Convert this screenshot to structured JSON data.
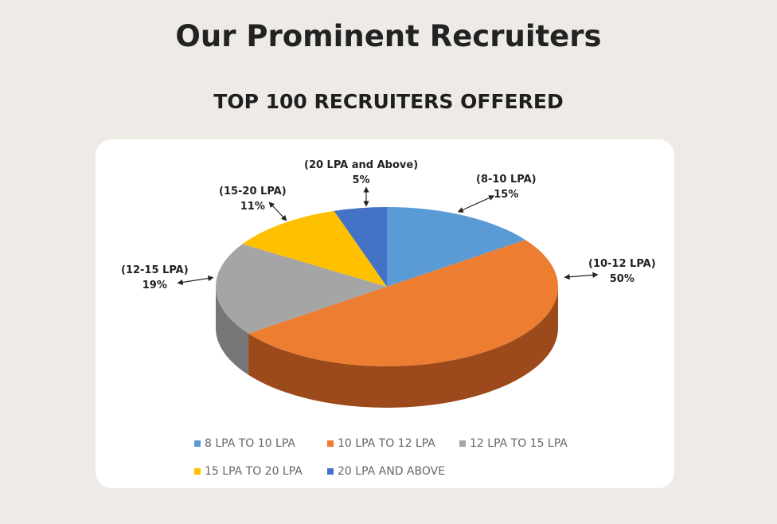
{
  "header": {
    "title": "Our Prominent Recruiters"
  },
  "chart_data": {
    "type": "pie",
    "title": "TOP 100 RECRUITERS OFFERED",
    "three_d": true,
    "legend_position": "bottom",
    "slices": [
      {
        "legend": "8 LPA TO 10 LPA",
        "label": "(8-10 LPA)",
        "value": 15,
        "value_label": "15%",
        "color": "#5b9bd5",
        "side": "#3f78ad"
      },
      {
        "legend": "10 LPA TO 12 LPA",
        "label": "(10-12 LPA)",
        "value": 50,
        "value_label": "50%",
        "color": "#ed7d31",
        "side": "#9c4a1c"
      },
      {
        "legend": "12 LPA TO 15 LPA",
        "label": "(12-15 LPA)",
        "value": 19,
        "value_label": "19%",
        "color": "#a5a5a5",
        "side": "#767676"
      },
      {
        "legend": "15 LPA TO 20 LPA",
        "label": "(15-20 LPA)",
        "value": 11,
        "value_label": "11%",
        "color": "#ffc000",
        "side": "#c49000"
      },
      {
        "legend": "20 LPA AND ABOVE",
        "label": "(20 LPA and Above)",
        "value": 5,
        "value_label": "5%",
        "color": "#4472c4",
        "side": "#2f5597"
      }
    ]
  }
}
